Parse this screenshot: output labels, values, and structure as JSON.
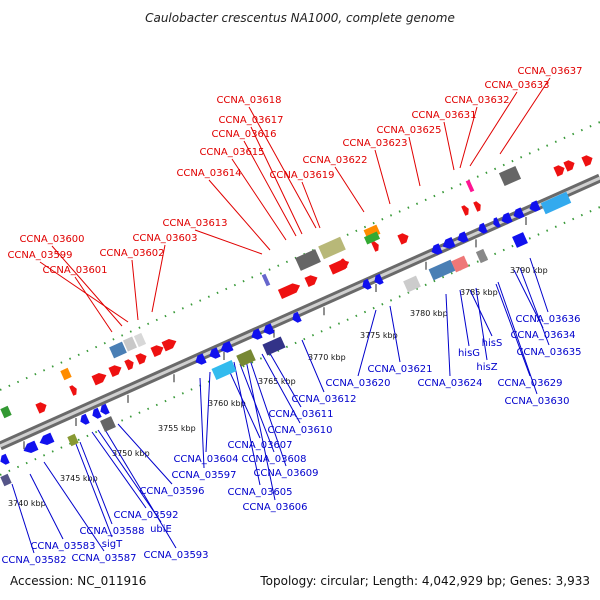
{
  "title": "Caulobacter crescentus NA1000, complete genome",
  "footer": {
    "accession": "Accession: NC_011916",
    "stats": "Topology: circular; Length: 4,042,929 bp; Genes: 3,933"
  },
  "colors": {
    "forward_label": "#e00000",
    "reverse_label": "#0000cc",
    "backbone": "#9a9a9a",
    "track_dots": "#3a9a3a"
  },
  "scale_labels": [
    "3740 kbp",
    "3745 kbp",
    "3750 kbp",
    "3755 kbp",
    "3760 kbp",
    "3765 kbp",
    "3770 kbp",
    "3775 kbp",
    "3780 kbp",
    "3785 kbp",
    "3790 kbp"
  ],
  "forward_genes": [
    "CCNA_03599",
    "CCNA_03600",
    "CCNA_03601",
    "CCNA_03602",
    "CCNA_03603",
    "CCNA_03613",
    "CCNA_03614",
    "CCNA_03615",
    "CCNA_03616",
    "CCNA_03617",
    "CCNA_03618",
    "CCNA_03619",
    "CCNA_03622",
    "CCNA_03623",
    "CCNA_03625",
    "CCNA_03631",
    "CCNA_03632",
    "CCNA_03633",
    "CCNA_03637"
  ],
  "reverse_genes": [
    "CCNA_03582",
    "CCNA_03583",
    "CCNA_03587",
    "CCNA_03588",
    "sigT",
    "CCNA_03592",
    "ubiE",
    "CCNA_03593",
    "CCNA_03596",
    "CCNA_03597",
    "CCNA_03604",
    "CCNA_03605",
    "CCNA_03606",
    "CCNA_03607",
    "CCNA_03608",
    "CCNA_03609",
    "CCNA_03610",
    "CCNA_03611",
    "CCNA_03612",
    "CCNA_03620",
    "CCNA_03621",
    "CCNA_03624",
    "hisG",
    "hisS",
    "hisZ",
    "CCNA_03629",
    "CCNA_03630",
    "CCNA_03634",
    "CCNA_03635",
    "CCNA_03636"
  ]
}
